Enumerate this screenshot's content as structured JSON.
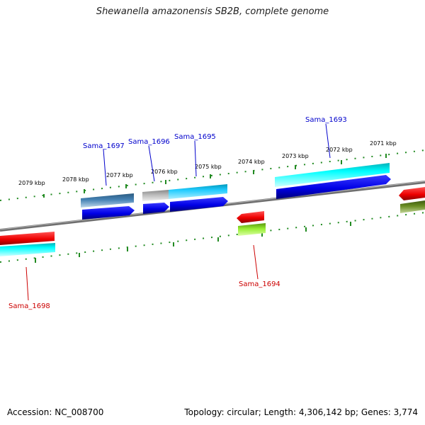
{
  "title": "Shewanella amazonensis SB2B, complete genome",
  "footer": {
    "accession": "Accession: NC_008700",
    "stats": "Topology: circular; Length: 4,306,142 bp; Genes: 3,774"
  },
  "scale_labels": [
    {
      "id": "2079",
      "text": "2079 kbp"
    },
    {
      "id": "2078",
      "text": "2078 kbp"
    },
    {
      "id": "2077",
      "text": "2077 kbp"
    },
    {
      "id": "2076",
      "text": "2076 kbp"
    },
    {
      "id": "2075",
      "text": "2075 kbp"
    },
    {
      "id": "2074",
      "text": "2074 kbp"
    },
    {
      "id": "2073",
      "text": "2073 kbp"
    },
    {
      "id": "2072",
      "text": "2072 kbp"
    },
    {
      "id": "2071",
      "text": "2071 kbp"
    }
  ],
  "gene_labels": [
    {
      "id": "sama-1697",
      "text": "Sama_1697",
      "color": "#0000cc"
    },
    {
      "id": "sama-1696",
      "text": "Sama_1696",
      "color": "#0000cc"
    },
    {
      "id": "sama-1695",
      "text": "Sama_1695",
      "color": "#0000cc"
    },
    {
      "id": "sama-1693",
      "text": "Sama_1693",
      "color": "#0000cc"
    },
    {
      "id": "sama-1694",
      "text": "Sama_1694",
      "color": "#cc0000"
    },
    {
      "id": "sama-1698",
      "text": "Sama_1698",
      "color": "#cc0000"
    }
  ],
  "colors": {
    "forward_cds": "#0000ee",
    "reverse_cds": "#ee0000",
    "tick": "#228b22",
    "backbone": "#777777"
  }
}
